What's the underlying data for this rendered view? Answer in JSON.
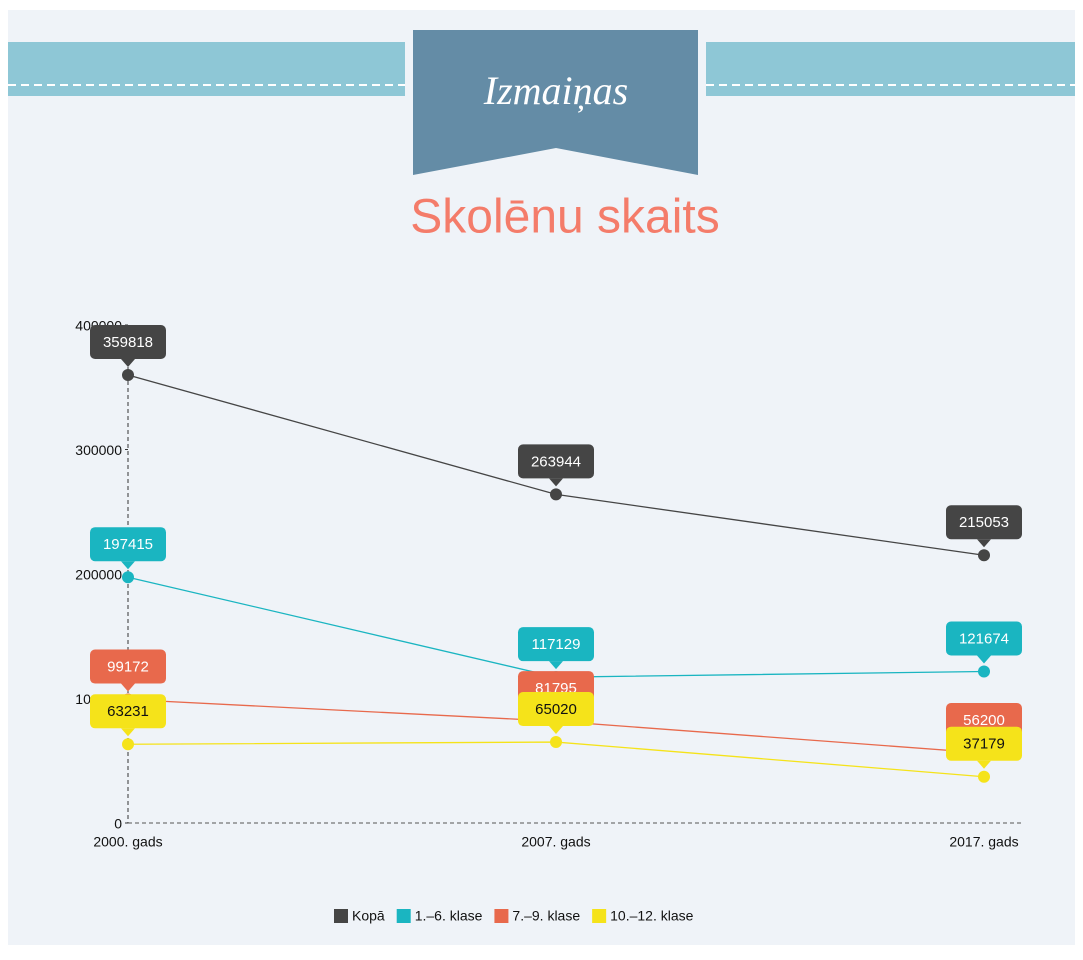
{
  "banner": "Izmaiņas",
  "chart_data": {
    "type": "line",
    "title": "Skolēnu skaits",
    "categories": [
      "2000. gads",
      "2007. gads",
      "2017. gads"
    ],
    "series": [
      {
        "name": "Kopā",
        "color": "#454545",
        "values": [
          359818,
          263944,
          215053
        ]
      },
      {
        "name": "1.–6. klase",
        "color": "#1ab5c1",
        "values": [
          197415,
          117129,
          121674
        ]
      },
      {
        "name": "7.–9. klase",
        "color": "#e8694c",
        "values": [
          99172,
          81795,
          56200
        ]
      },
      {
        "name": "10.–12. klase",
        "color": "#f5e31a",
        "values": [
          63231,
          65020,
          37179
        ]
      }
    ],
    "ylim": [
      0,
      400000
    ],
    "yticks": [
      0,
      100000,
      200000,
      300000,
      400000
    ],
    "grid": false,
    "legend": "bottom"
  }
}
